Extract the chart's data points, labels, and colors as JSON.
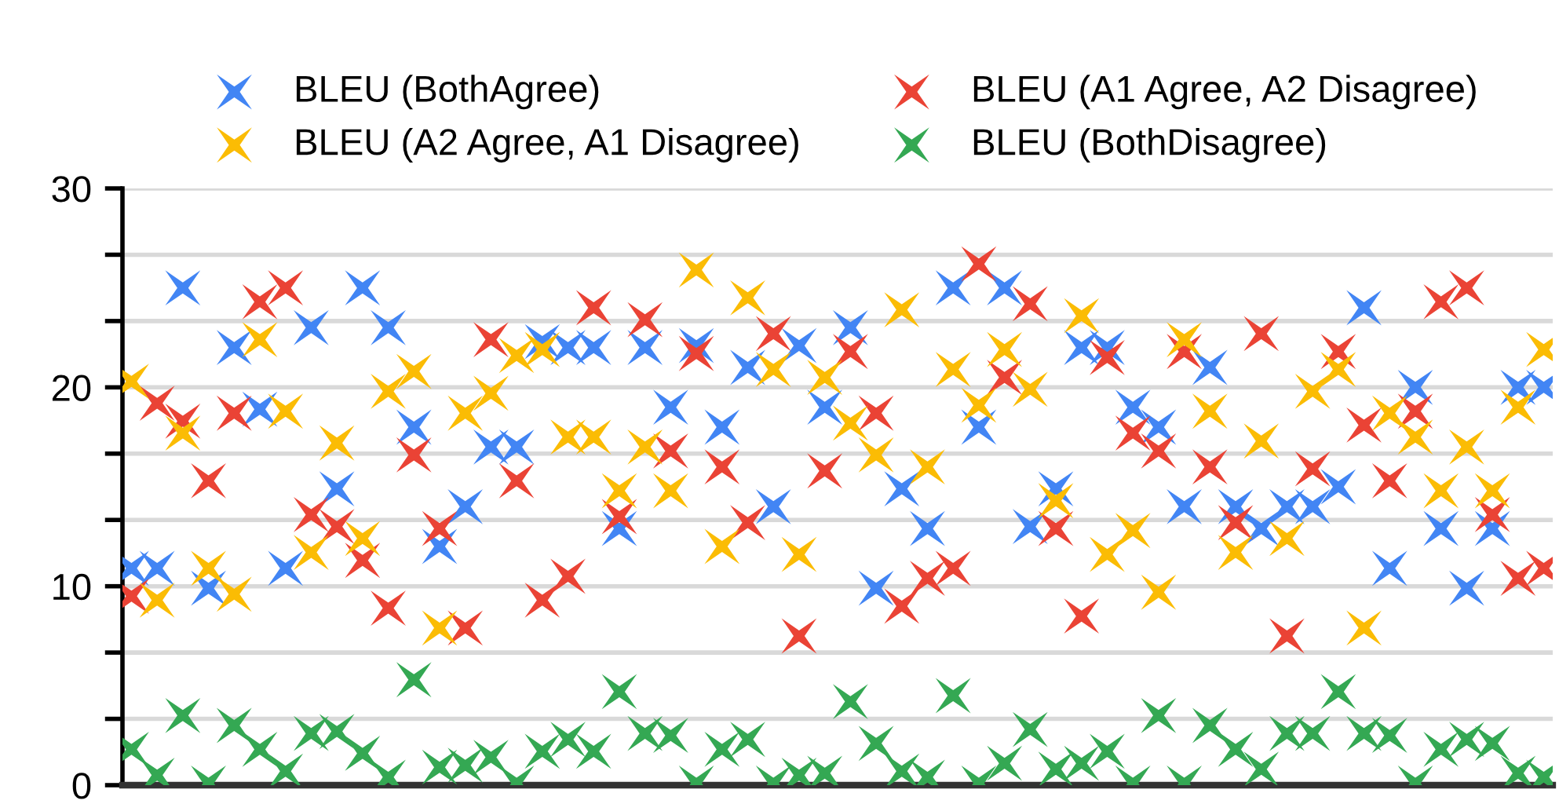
{
  "chart_data": {
    "type": "scatter",
    "categories": [
      null,
      null,
      null,
      null,
      null,
      null,
      null,
      null,
      null,
      null,
      null,
      null,
      null,
      null,
      null,
      null,
      null,
      null,
      null,
      null,
      null,
      null,
      null,
      null,
      null,
      null,
      null,
      null,
      null,
      null,
      null,
      null,
      null,
      null,
      null,
      null,
      null,
      null,
      null,
      null,
      null,
      null,
      null,
      null,
      null,
      null,
      null,
      null,
      null,
      null,
      null,
      null,
      null,
      null,
      null,
      null
    ],
    "series": [
      {
        "name": "BLEU (BothAgree)",
        "color": "#4285f4",
        "values": [
          10.9,
          10.9,
          25.0,
          9.9,
          22.0,
          18.9,
          10.9,
          23.0,
          14.9,
          25.0,
          23.0,
          18.0,
          12.0,
          14.0,
          17.0,
          17.0,
          22.3,
          22.0,
          22.0,
          12.9,
          22.0,
          19.0,
          22.1,
          18.0,
          21.0,
          14.0,
          22.1,
          19.0,
          23.0,
          9.9,
          14.9,
          12.9,
          25.0,
          18.0,
          25.0,
          13.0,
          14.9,
          22.0,
          22.0,
          19.0,
          18.0,
          14.0,
          21.0,
          14.0,
          12.9,
          14.0,
          14.0,
          15.0,
          24.0,
          10.9,
          20.0,
          12.9,
          9.9,
          12.9,
          20.0,
          20.0
        ]
      },
      {
        "name": "BLEU (A1 Agree, A2 Disagree)",
        "color": "#ea4335",
        "values": [
          9.5,
          19.2,
          18.3,
          15.3,
          18.7,
          24.3,
          25.0,
          13.6,
          13.0,
          11.3,
          8.9,
          16.6,
          12.9,
          7.9,
          22.4,
          15.3,
          9.3,
          10.5,
          24.0,
          13.5,
          23.4,
          16.8,
          21.7,
          16.0,
          13.2,
          22.7,
          7.5,
          15.8,
          21.8,
          18.7,
          9.0,
          10.4,
          10.9,
          26.2,
          20.5,
          24.2,
          12.9,
          8.5,
          21.5,
          17.7,
          16.8,
          21.8,
          16.0,
          13.2,
          22.7,
          7.5,
          15.9,
          21.8,
          18.1,
          15.3,
          18.8,
          24.3,
          25.0,
          13.6,
          10.4,
          10.9
        ]
      },
      {
        "name": "BLEU (A2 Agree, A1 Disagree)",
        "color": "#fbbc04",
        "values": [
          20.3,
          9.3,
          17.7,
          10.9,
          9.6,
          22.4,
          18.8,
          11.7,
          17.2,
          12.4,
          19.8,
          20.8,
          7.9,
          18.7,
          19.7,
          21.6,
          21.9,
          17.5,
          17.5,
          14.8,
          17.0,
          14.8,
          25.9,
          12.0,
          24.5,
          20.9,
          11.6,
          20.5,
          18.2,
          16.6,
          23.9,
          16.0,
          20.9,
          19.1,
          21.9,
          19.9,
          14.3,
          23.6,
          11.6,
          12.8,
          9.7,
          22.4,
          18.8,
          11.7,
          17.3,
          12.4,
          19.8,
          20.9,
          7.9,
          18.7,
          17.5,
          14.8,
          17.0,
          14.8,
          19.0,
          21.9
        ]
      },
      {
        "name": "BLEU (BothDisagree)",
        "color": "#34a853",
        "values": [
          1.8,
          0.5,
          3.5,
          0.1,
          3.0,
          1.8,
          0.7,
          2.6,
          2.7,
          1.6,
          0.4,
          5.3,
          0.9,
          1.0,
          1.4,
          0.1,
          1.7,
          2.3,
          1.7,
          4.7,
          2.6,
          2.5,
          0.1,
          1.8,
          2.3,
          0.1,
          0.5,
          0.6,
          4.2,
          2.1,
          0.7,
          0.4,
          4.5,
          0.1,
          1.1,
          2.8,
          0.8,
          1.1,
          1.7,
          0.1,
          3.5,
          0.1,
          3.0,
          1.8,
          0.8,
          2.6,
          2.6,
          4.7,
          2.6,
          2.5,
          0.1,
          1.8,
          2.3,
          2.1,
          0.6,
          0.4
        ]
      }
    ],
    "ylim": [
      0,
      30
    ],
    "yticks": [
      0,
      {
        "value": 3.333,
        "label": null
      },
      {
        "value": 6.667,
        "label": null
      },
      10,
      {
        "value": 13.333,
        "label": null
      },
      {
        "value": 16.667,
        "label": null
      },
      20,
      {
        "value": 23.333,
        "label": null
      },
      {
        "value": 26.667,
        "label": null
      },
      30
    ],
    "grid": "y",
    "legend": "top",
    "marker": "cross",
    "tick_labels": "y"
  }
}
